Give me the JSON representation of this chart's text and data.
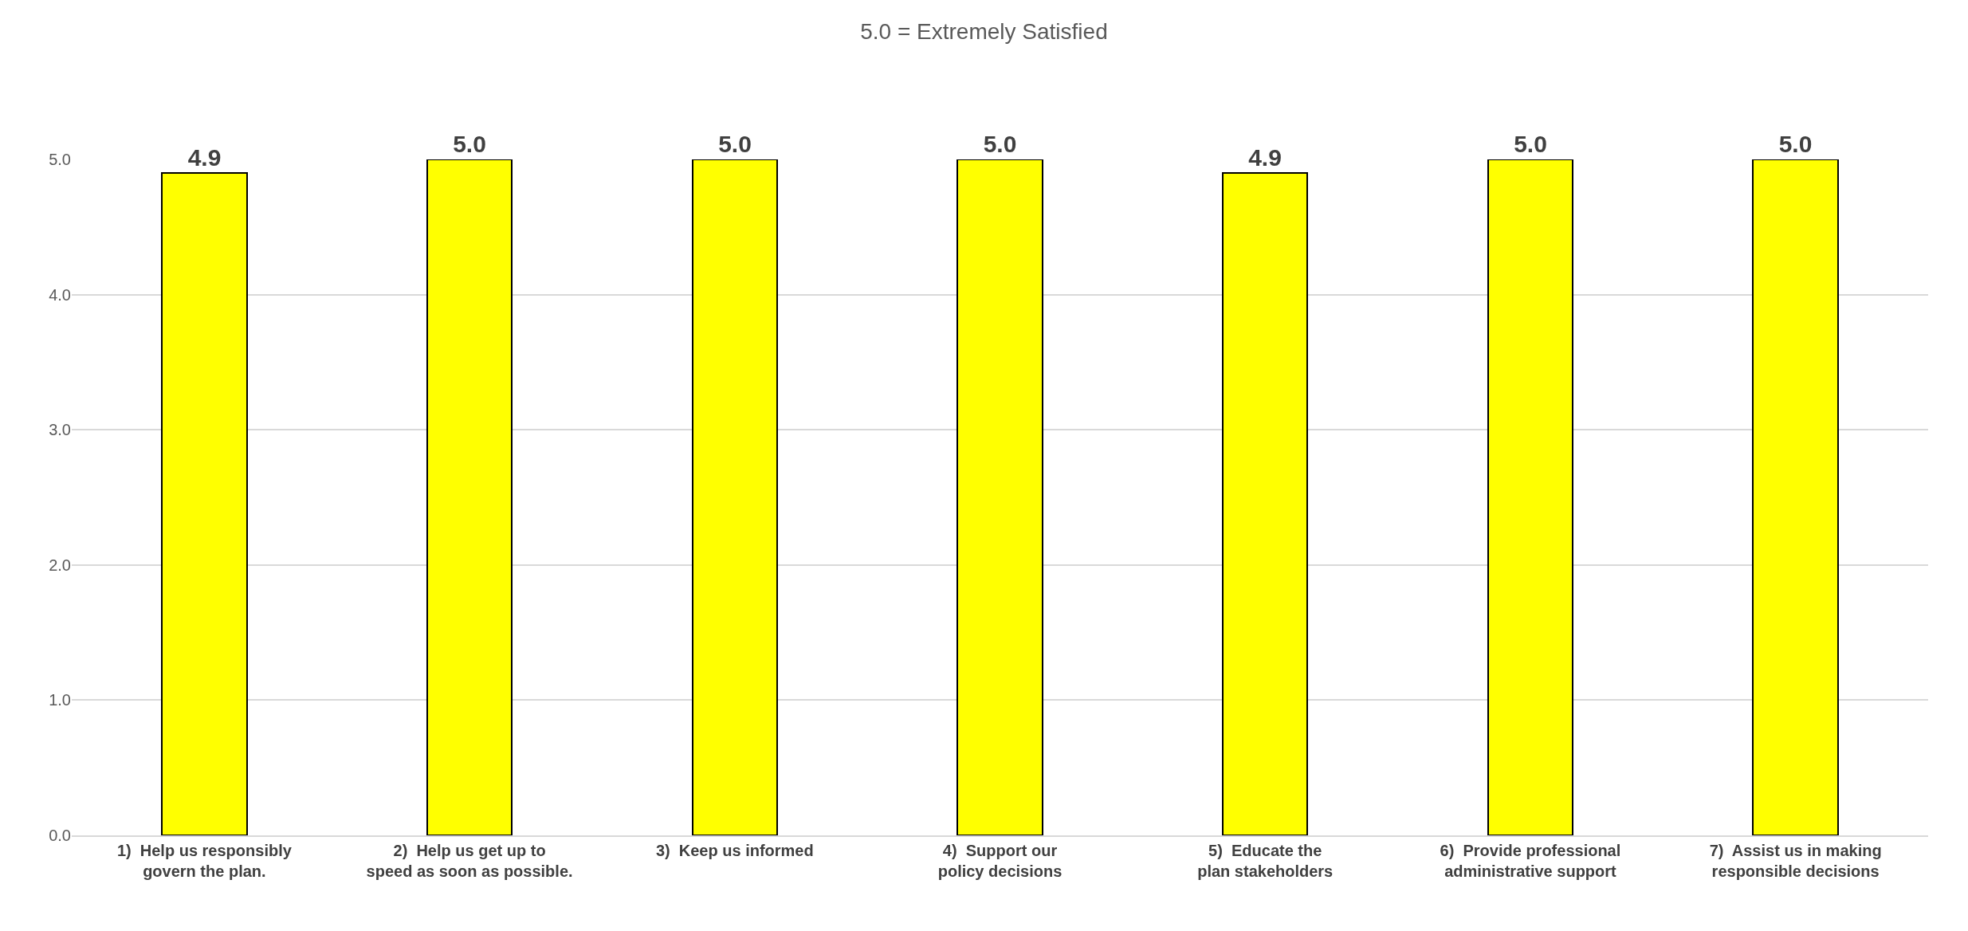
{
  "chart_data": {
    "type": "bar",
    "title": "5.0 = Extremely Satisfied",
    "categories": [
      "1)  Help us responsibly govern the plan.",
      "2)  Help us get up to speed as soon as possible.",
      "3)  Keep us informed",
      "4)  Support our policy decisions",
      "5)  Educate the plan stakeholders",
      "6)  Provide professional administrative support",
      "7)  Assist us in making responsible decisions"
    ],
    "values": [
      4.9,
      5.0,
      5.0,
      5.0,
      4.9,
      5.0,
      5.0
    ],
    "value_labels": [
      "4.9",
      "5.0",
      "5.0",
      "5.0",
      "4.9",
      "5.0",
      "5.0"
    ],
    "color": "#ffff00",
    "ylim": [
      0,
      5
    ],
    "yticks": [
      {
        "value": 0,
        "label": "0.0"
      },
      {
        "value": 1,
        "label": "1.0"
      },
      {
        "value": 2,
        "label": "2.0"
      },
      {
        "value": 3,
        "label": "3.0"
      },
      {
        "value": 4,
        "label": "4.0"
      },
      {
        "value": 5,
        "label": "5.0"
      }
    ],
    "grid": "y",
    "legend": false
  }
}
